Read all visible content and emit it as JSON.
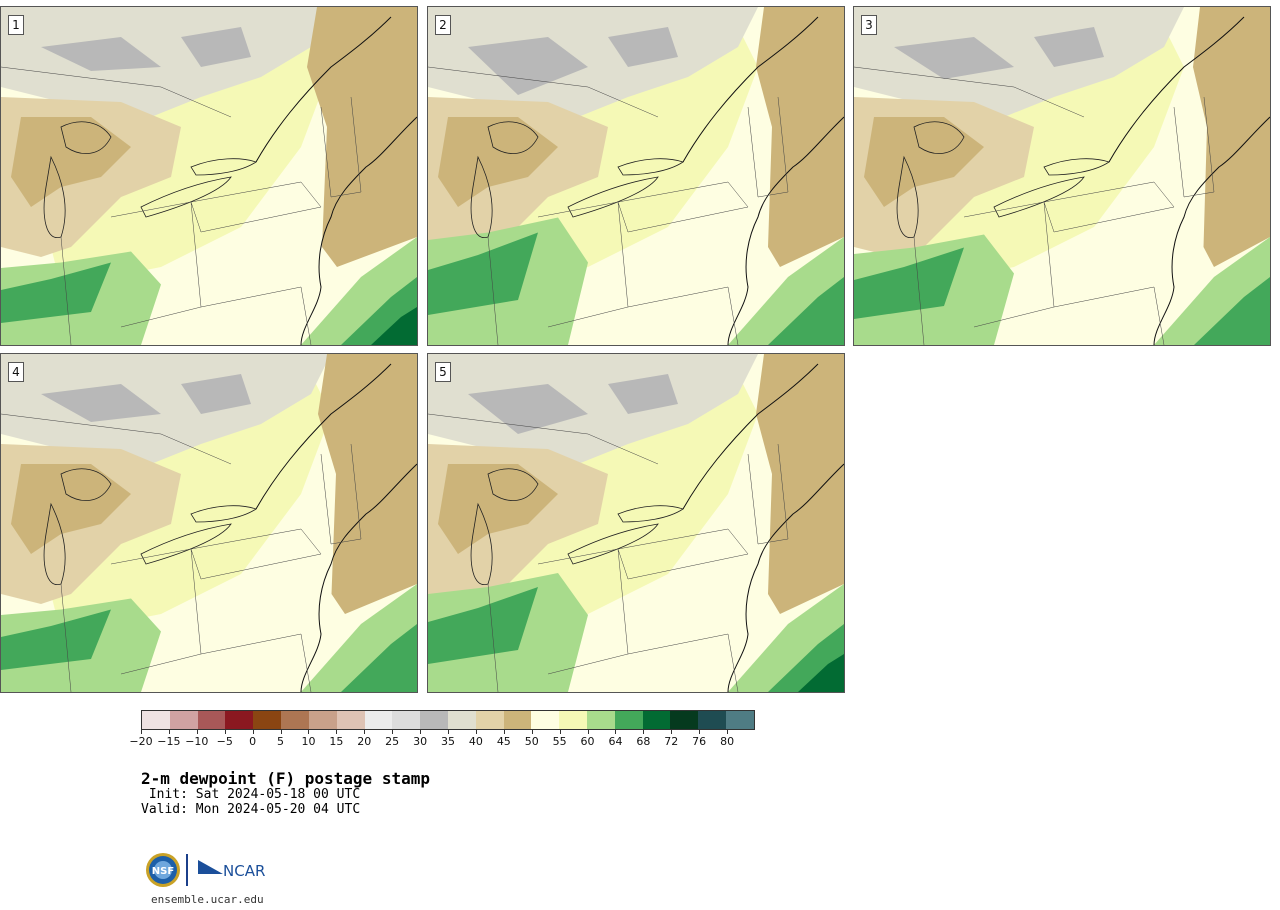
{
  "panels": [
    {
      "label": "1",
      "variant": 0
    },
    {
      "label": "2",
      "variant": 1
    },
    {
      "label": "3",
      "variant": 2
    },
    {
      "label": "4",
      "variant": 3
    },
    {
      "label": "5",
      "variant": 4
    }
  ],
  "colorbar": {
    "colors": [
      "#efe3e3",
      "#d0a2a2",
      "#a85858",
      "#8b1820",
      "#8a4512",
      "#ad7653",
      "#c8a18a",
      "#dec3b4",
      "#ececec",
      "#dcdcdc",
      "#b8b8b8",
      "#e0dfd0",
      "#e2d2a8",
      "#ccb47a",
      "#fefee2",
      "#f5f9b6",
      "#a8db8c",
      "#43a85a",
      "#026b33",
      "#053a1e",
      "#1f4c52",
      "#4f7c84"
    ],
    "tick_labels": [
      "−20",
      "−15",
      "−10",
      "−5",
      "0",
      "5",
      "10",
      "15",
      "20",
      "25",
      "30",
      "35",
      "40",
      "45",
      "50",
      "55",
      "60",
      "64",
      "68",
      "72",
      "76",
      "80"
    ]
  },
  "title": "2-m dewpoint (F) postage stamp",
  "init": " Init: Sat 2024-05-18 00 UTC",
  "valid": "Valid: Mon 2024-05-20 04 UTC",
  "logos": {
    "nsf": "NSF",
    "ncar": "NCAR"
  },
  "site": "ensemble.ucar.edu"
}
